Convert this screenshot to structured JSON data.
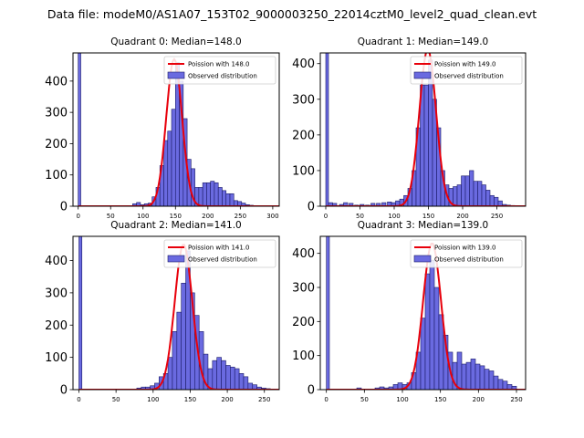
{
  "figure_title": "Data file: modeM0/AS1A07_153T02_9000003250_22014cztM0_level2_quad_clean.evt",
  "colors": {
    "bar_fill": "#6a6ae0",
    "bar_edge": "#1a1a66",
    "fit_line": "#e8000b"
  },
  "chart_data": [
    {
      "type": "bar",
      "title": "Quadrant 0: Median=148.0",
      "median": 148.0,
      "xlim": [
        -8,
        310
      ],
      "ylim": [
        0,
        490
      ],
      "xticks": [
        0,
        50,
        100,
        150,
        200,
        250,
        300
      ],
      "yticks": [
        0,
        100,
        200,
        300,
        400
      ],
      "bin_width": 6,
      "bins": [
        0,
        84,
        90,
        96,
        102,
        108,
        114,
        120,
        126,
        132,
        138,
        144,
        150,
        156,
        162,
        168,
        174,
        180,
        186,
        192,
        198,
        204,
        210,
        216,
        222,
        228,
        234,
        240,
        246,
        252,
        258,
        264,
        270
      ],
      "values": [
        490,
        8,
        12,
        5,
        8,
        10,
        30,
        60,
        130,
        210,
        240,
        310,
        460,
        400,
        280,
        150,
        120,
        60,
        60,
        75,
        75,
        80,
        75,
        60,
        50,
        40,
        40,
        18,
        15,
        10,
        5,
        3,
        2
      ],
      "poisson_label": "Poission with 148.0",
      "poisson_mean": 148.0,
      "poisson_scale": 470,
      "legend": [
        "Poission with 148.0",
        "Observed distribution"
      ]
    },
    {
      "type": "bar",
      "title": "Quadrant 1: Median=149.0",
      "median": 149.0,
      "xlim": [
        -8,
        292
      ],
      "ylim": [
        0,
        430
      ],
      "xticks": [
        0,
        50,
        100,
        150,
        200,
        250
      ],
      "yticks": [
        0,
        100,
        200,
        300,
        400
      ],
      "bin_width": 6,
      "bins": [
        0,
        4,
        10,
        20,
        26,
        34,
        42,
        50,
        58,
        66,
        74,
        82,
        90,
        96,
        102,
        108,
        114,
        120,
        126,
        132,
        138,
        144,
        150,
        156,
        162,
        168,
        174,
        180,
        186,
        192,
        198,
        204,
        210,
        216,
        222,
        228,
        234,
        240,
        246,
        252,
        258,
        264,
        270
      ],
      "values": [
        430,
        10,
        8,
        5,
        10,
        8,
        3,
        5,
        3,
        8,
        8,
        10,
        12,
        10,
        15,
        20,
        30,
        50,
        100,
        220,
        340,
        340,
        410,
        300,
        220,
        100,
        60,
        50,
        55,
        60,
        85,
        85,
        100,
        70,
        70,
        60,
        45,
        30,
        25,
        15,
        5,
        3,
        2
      ],
      "poisson_label": "Poission with 149.0",
      "poisson_mean": 149.0,
      "poisson_scale": 440,
      "legend": [
        "Poission with 149.0",
        "Observed distribution"
      ]
    },
    {
      "type": "bar",
      "title": "Quadrant 2: Median=141.0",
      "median": 141.0,
      "xlim": [
        -8,
        270
      ],
      "ylim": [
        0,
        475
      ],
      "xticks": [
        0,
        50,
        100,
        150,
        200,
        250
      ],
      "yticks": [
        0,
        100,
        200,
        300,
        400
      ],
      "bin_width": 6,
      "bins": [
        0,
        78,
        84,
        90,
        96,
        102,
        108,
        114,
        120,
        126,
        132,
        138,
        144,
        150,
        156,
        162,
        168,
        174,
        180,
        186,
        192,
        198,
        204,
        210,
        216,
        222,
        228,
        234,
        240,
        246,
        252
      ],
      "values": [
        475,
        5,
        8,
        8,
        12,
        20,
        40,
        50,
        100,
        180,
        240,
        330,
        430,
        300,
        230,
        180,
        110,
        65,
        90,
        100,
        90,
        75,
        70,
        65,
        50,
        40,
        20,
        15,
        8,
        5,
        3
      ],
      "poisson_label": "Poission with 141.0",
      "poisson_mean": 141.0,
      "poisson_scale": 450,
      "legend": [
        "Poission with 141.0",
        "Observed distribution"
      ]
    },
    {
      "type": "bar",
      "title": "Quadrant 3: Median=139.0",
      "median": 139.0,
      "xlim": [
        -8,
        262
      ],
      "ylim": [
        0,
        450
      ],
      "xticks": [
        0,
        50,
        100,
        150,
        200,
        250
      ],
      "yticks": [
        0,
        100,
        200,
        300,
        400
      ],
      "bin_width": 6,
      "bins": [
        0,
        40,
        64,
        70,
        76,
        82,
        88,
        94,
        100,
        106,
        112,
        118,
        124,
        130,
        136,
        142,
        148,
        154,
        160,
        166,
        172,
        178,
        184,
        190,
        196,
        202,
        208,
        214,
        220,
        226,
        232,
        238,
        244
      ],
      "values": [
        450,
        5,
        5,
        8,
        5,
        8,
        15,
        20,
        15,
        20,
        50,
        110,
        210,
        340,
        380,
        300,
        220,
        160,
        110,
        80,
        110,
        75,
        80,
        90,
        75,
        70,
        60,
        55,
        40,
        30,
        25,
        15,
        10
      ],
      "poisson_label": "Poission with 139.0",
      "poisson_mean": 139.0,
      "poisson_scale": 430,
      "legend": [
        "Poission with 139.0",
        "Observed distribution"
      ]
    }
  ]
}
